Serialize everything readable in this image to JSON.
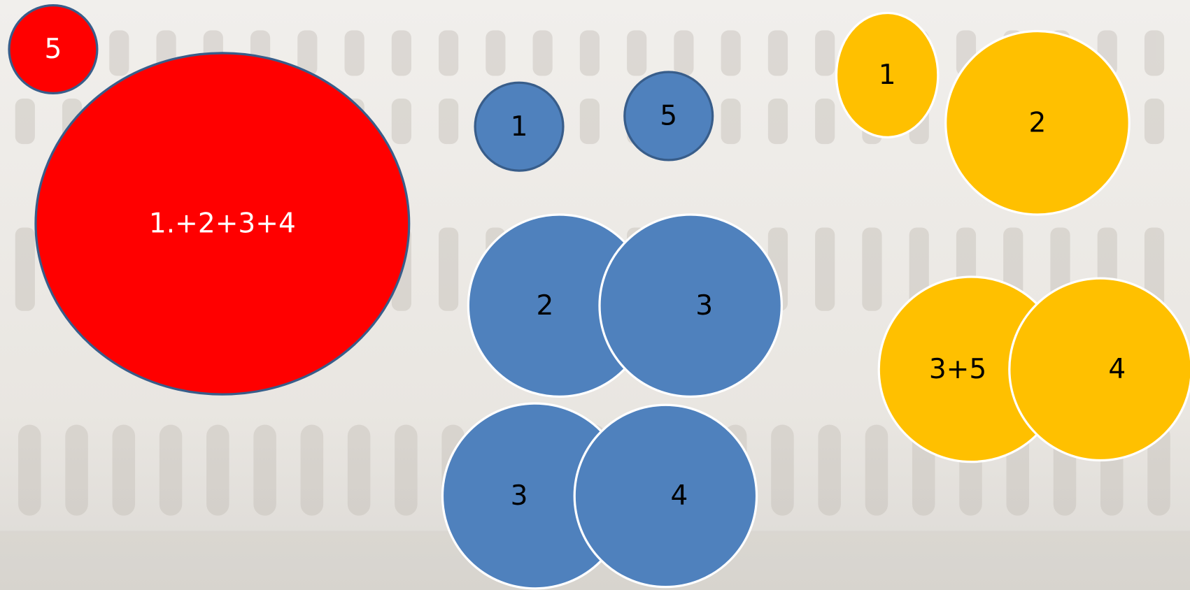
{
  "shapes": [
    {
      "label": "5"
    },
    {
      "label": "1.+2+3+4"
    },
    {
      "label": "1"
    },
    {
      "label": "5"
    },
    {
      "label": "2"
    },
    {
      "label": "3"
    },
    {
      "label": "3"
    },
    {
      "label": "4"
    },
    {
      "label": "1"
    },
    {
      "label": "2"
    },
    {
      "label": "3+5"
    },
    {
      "label": "4"
    }
  ]
}
